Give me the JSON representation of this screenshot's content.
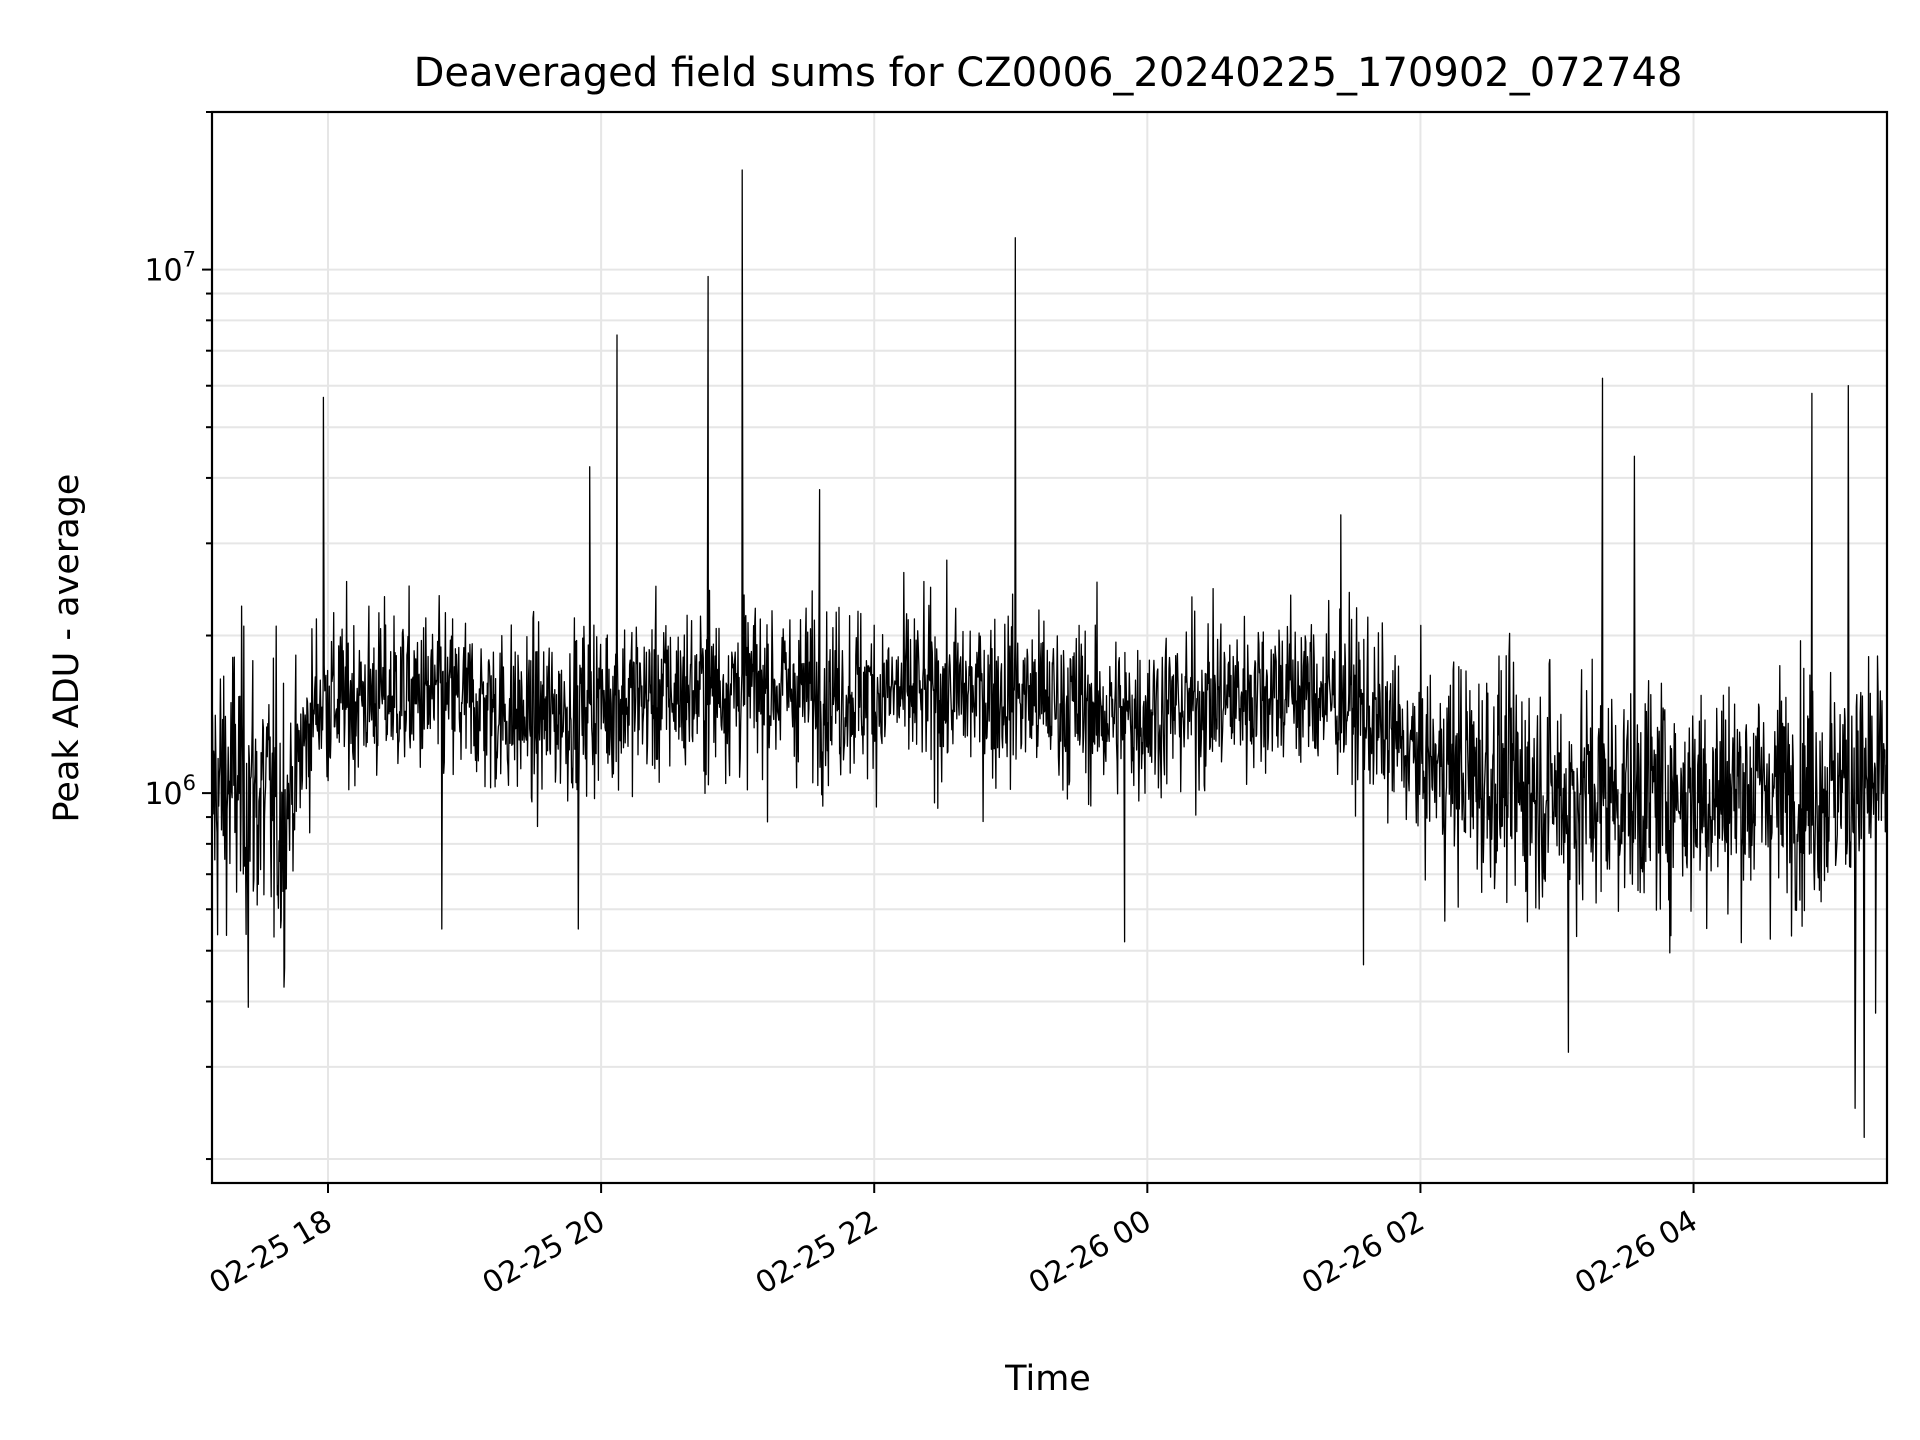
{
  "chart_data": {
    "type": "line",
    "title": "Deaveraged field sums for CZ0006_20240225_170902_072748",
    "xlabel": "Time",
    "ylabel": "Peak ADU - average",
    "yscale": "log",
    "ylim": [
      180000,
      20000000
    ],
    "xlim": [
      "2024-02-25T17:09:02",
      "2024-02-26T05:25:00"
    ],
    "grid": true,
    "line_color": "#000000",
    "grid_color": "#e6e6e6",
    "x_ticks": [
      {
        "at": "2024-02-25T18:00",
        "label": "02-25 18"
      },
      {
        "at": "2024-02-25T20:00",
        "label": "02-25 20"
      },
      {
        "at": "2024-02-25T22:00",
        "label": "02-25 22"
      },
      {
        "at": "2024-02-26T00:00",
        "label": "02-26 00"
      },
      {
        "at": "2024-02-26T02:00",
        "label": "02-26 02"
      },
      {
        "at": "2024-02-26T04:00",
        "label": "02-26 04"
      }
    ],
    "y_ticks": [
      {
        "value": 1000000,
        "base": "10",
        "exp": "6"
      },
      {
        "value": 10000000,
        "base": "10",
        "exp": "7"
      }
    ],
    "series": [
      {
        "baseline": [
          [
            "2024-02-25T17:09:02",
            1000000
          ],
          [
            "2024-02-25T17:20",
            1050000
          ],
          [
            "2024-02-25T17:40",
            900000
          ],
          [
            "2024-02-25T17:55",
            1500000
          ],
          [
            "2024-02-25T18:30",
            1550000
          ],
          [
            "2024-02-25T19:00",
            1500000
          ],
          [
            "2024-02-25T19:30",
            1380000
          ],
          [
            "2024-02-25T20:00",
            1500000
          ],
          [
            "2024-02-25T21:00",
            1600000
          ],
          [
            "2024-02-25T22:00",
            1550000
          ],
          [
            "2024-02-25T23:00",
            1550000
          ],
          [
            "2024-02-25T23:50",
            1400000
          ],
          [
            "2024-02-26T00:30",
            1500000
          ],
          [
            "2024-02-26T01:00",
            1600000
          ],
          [
            "2024-02-26T01:30",
            1500000
          ],
          [
            "2024-02-26T02:00",
            1150000
          ],
          [
            "2024-02-26T03:00",
            1000000
          ],
          [
            "2024-02-26T04:00",
            1000000
          ],
          [
            "2024-02-26T05:25",
            1050000
          ]
        ],
        "spikes": [
          [
            "2024-02-25T17:58",
            5700000
          ],
          [
            "2024-02-25T19:55",
            4200000
          ],
          [
            "2024-02-25T20:07",
            7500000
          ],
          [
            "2024-02-25T20:47",
            9700000
          ],
          [
            "2024-02-25T21:02",
            15500000
          ],
          [
            "2024-02-25T21:36",
            3800000
          ],
          [
            "2024-02-25T23:02",
            11500000
          ],
          [
            "2024-02-26T01:25",
            3400000
          ],
          [
            "2024-02-26T03:20",
            6200000
          ],
          [
            "2024-02-26T03:34",
            4400000
          ],
          [
            "2024-02-26T04:52",
            5800000
          ],
          [
            "2024-02-26T05:08",
            6000000
          ]
        ],
        "dips": [
          [
            "2024-02-25T17:25",
            390000
          ],
          [
            "2024-02-25T18:50",
            550000
          ],
          [
            "2024-02-25T19:50",
            550000
          ],
          [
            "2024-02-25T23:50",
            520000
          ],
          [
            "2024-02-26T01:35",
            470000
          ],
          [
            "2024-02-26T03:05",
            320000
          ],
          [
            "2024-02-26T05:11",
            250000
          ],
          [
            "2024-02-26T05:15",
            220000
          ],
          [
            "2024-02-26T05:20",
            380000
          ]
        ]
      }
    ]
  }
}
